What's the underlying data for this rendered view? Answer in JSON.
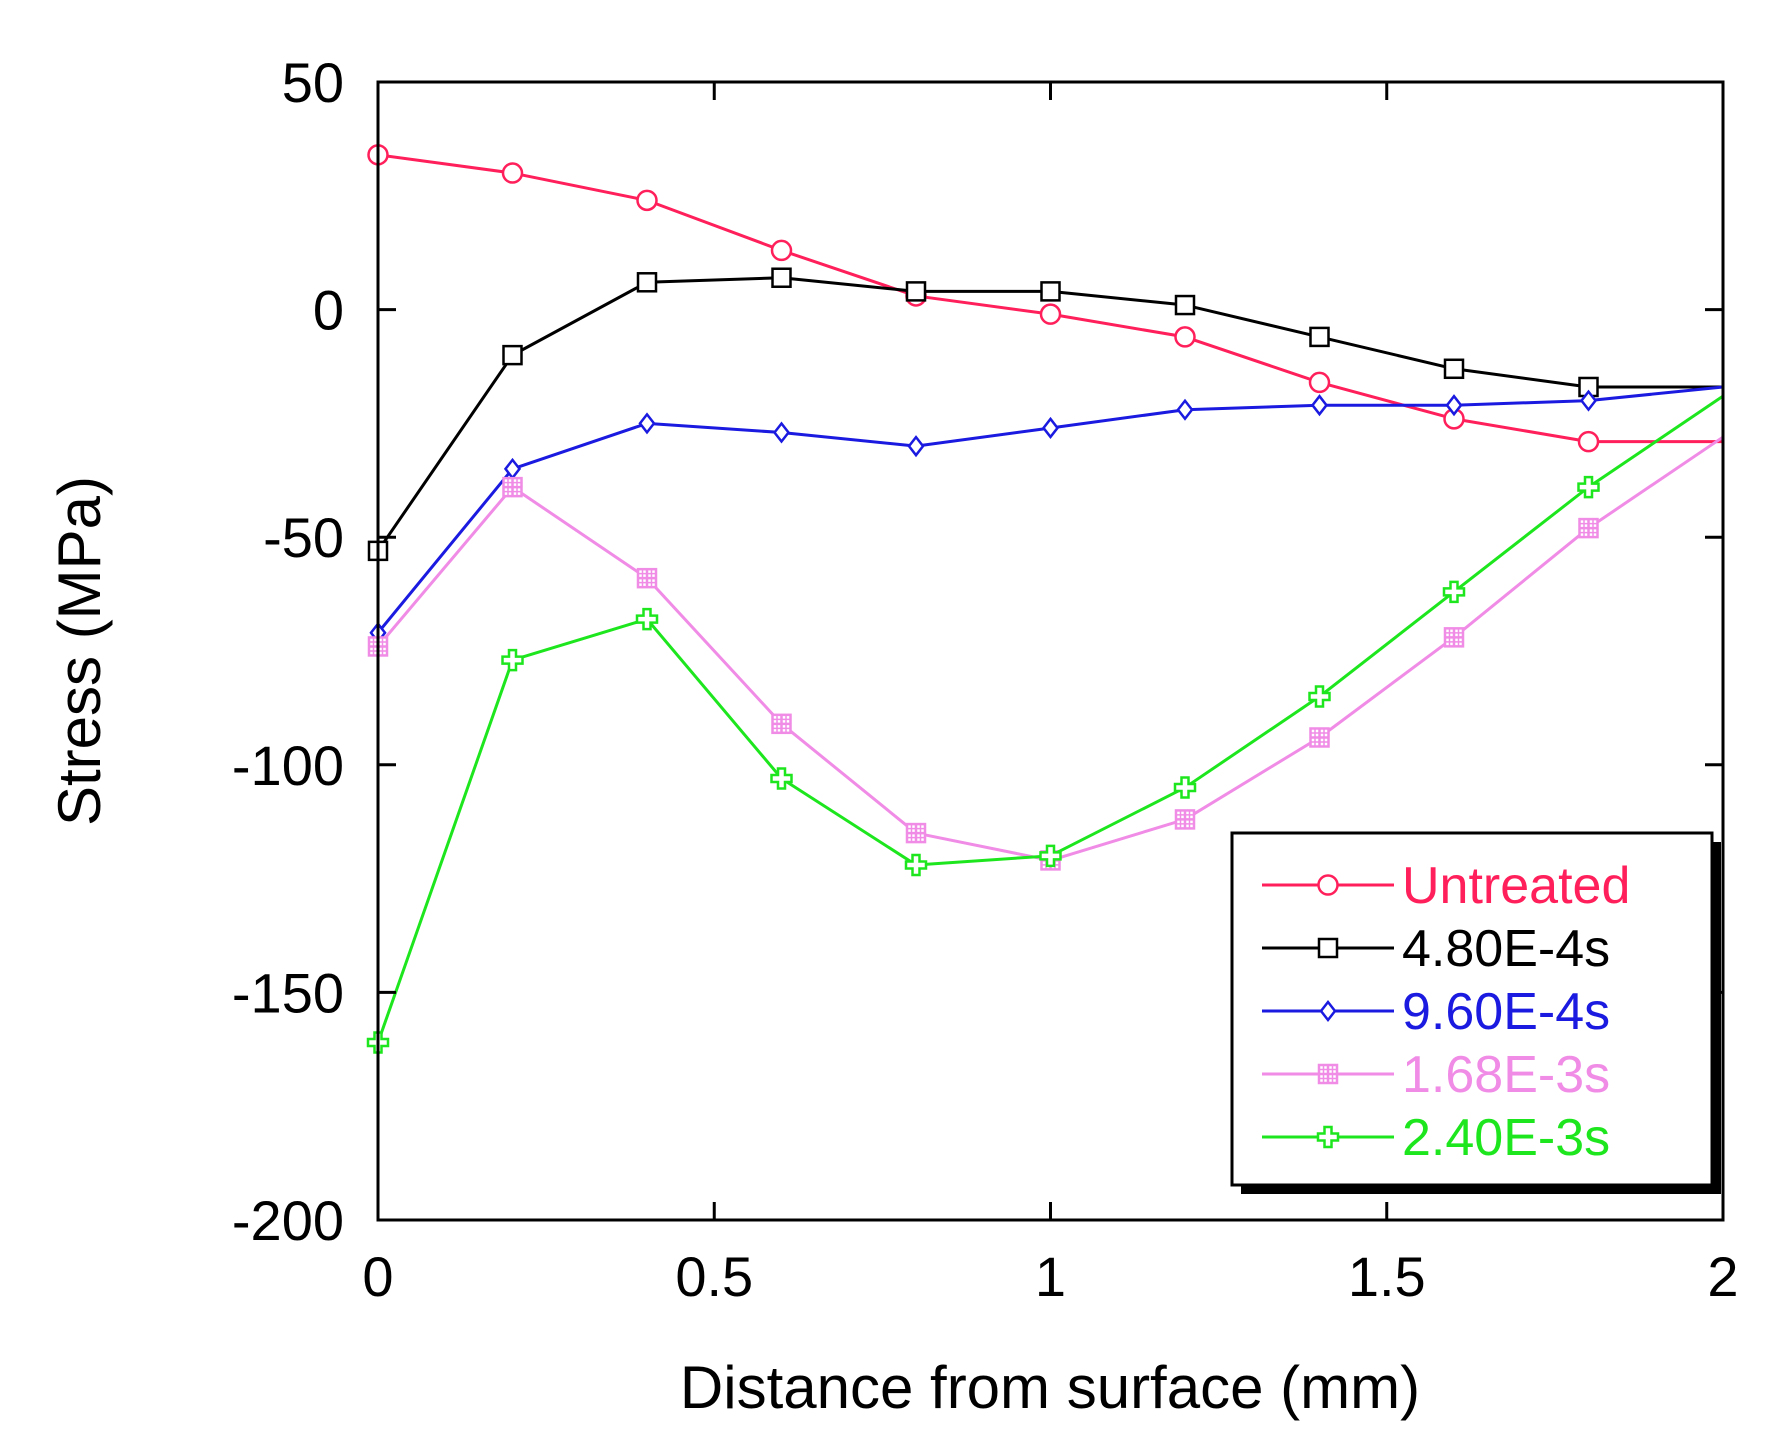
{
  "chart_data": {
    "type": "line",
    "title": "",
    "xlabel": "Distance from surface (mm)",
    "ylabel": "Stress (MPa)",
    "xlim": [
      0,
      2
    ],
    "ylim": [
      -200,
      50
    ],
    "grid": false,
    "legend_position": "bottom-right",
    "x_ticks": [
      0,
      0.5,
      1,
      1.5,
      2
    ],
    "x_tick_labels": [
      "0",
      "0.5",
      "1",
      "1.5",
      "2"
    ],
    "y_ticks": [
      50,
      0,
      -50,
      -100,
      -150,
      -200
    ],
    "y_tick_labels": [
      "50",
      "0",
      "-50",
      "-100",
      "-150",
      "-200"
    ],
    "x": [
      0,
      0.2,
      0.4,
      0.6,
      0.8,
      1.0,
      1.2,
      1.4,
      1.6,
      1.8,
      2.0
    ],
    "series": [
      {
        "name": "Untreated",
        "color": "#ff1f5a",
        "marker": "circle",
        "values": [
          34,
          30,
          24,
          13,
          3,
          -1,
          -6,
          -16,
          -24,
          -29,
          -29
        ]
      },
      {
        "name": "4.80E-4s",
        "color": "#000000",
        "marker": "square",
        "values": [
          -53,
          -10,
          6,
          7,
          4,
          4,
          1,
          -6,
          -13,
          -17,
          -17
        ]
      },
      {
        "name": "9.60E-4s",
        "color": "#1a1ae0",
        "marker": "diamond",
        "values": [
          -71,
          -35,
          -25,
          -27,
          -30,
          -26,
          -22,
          -21,
          -21,
          -20,
          -17
        ]
      },
      {
        "name": "1.68E-3s",
        "color": "#f08be6",
        "marker": "square-cross",
        "values": [
          -74,
          -39,
          -59,
          -91,
          -115,
          -121,
          -112,
          -94,
          -72,
          -48,
          -28
        ]
      },
      {
        "name": "2.40E-3s",
        "color": "#1ee61e",
        "marker": "plus",
        "values": [
          -161,
          -77,
          -68,
          -103,
          -122,
          -120,
          -105,
          -85,
          -62,
          -39,
          -19
        ]
      }
    ]
  }
}
